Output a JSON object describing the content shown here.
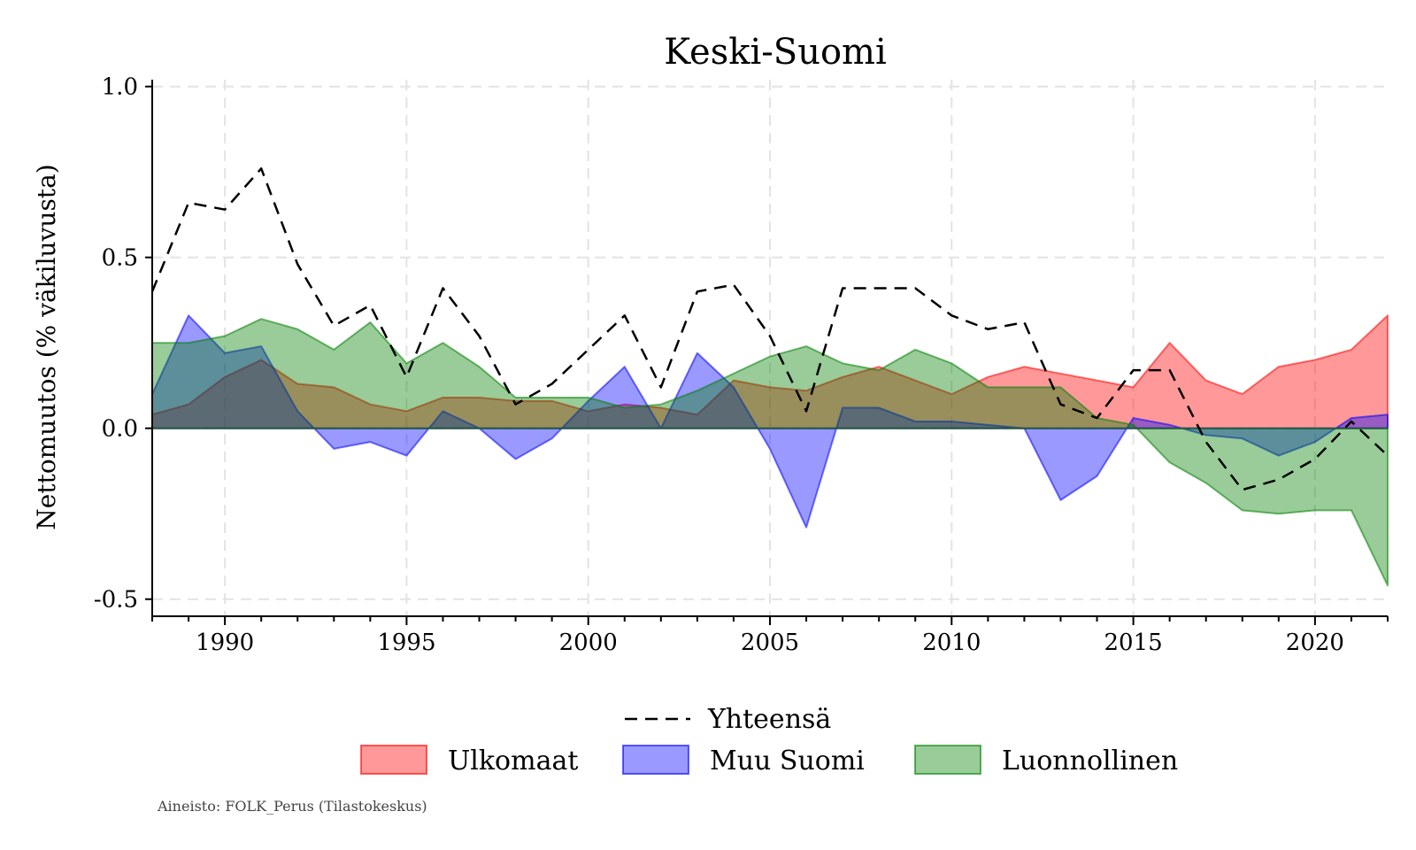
{
  "chart_data": {
    "type": "area",
    "title": "Keski-Suomi",
    "ylabel": "Nettomuutos (% väkiluvusta)",
    "xlabel": "",
    "xlim": [
      1988,
      2022
    ],
    "ylim": [
      -0.55,
      1.02
    ],
    "x_ticks": [
      1990,
      1995,
      2000,
      2005,
      2010,
      2015,
      2020
    ],
    "y_ticks": [
      -0.5,
      0.0,
      0.5,
      1.0
    ],
    "y_tick_labels": [
      "-0.5",
      "0.0",
      "0.5",
      "1.0"
    ],
    "grid": true,
    "legend_position": "bottom",
    "source_note": "Aineisto: FOLK_Perus (Tilastokeskus)",
    "x": [
      1988,
      1989,
      1990,
      1991,
      1992,
      1993,
      1994,
      1995,
      1996,
      1997,
      1998,
      1999,
      2000,
      2001,
      2002,
      2003,
      2004,
      2005,
      2006,
      2007,
      2008,
      2009,
      2010,
      2011,
      2012,
      2013,
      2014,
      2015,
      2016,
      2017,
      2018,
      2019,
      2020,
      2021,
      2022
    ],
    "series": [
      {
        "name": "Ulkomaat",
        "kind": "area",
        "color": "#ff0000",
        "fill_opacity": 0.4,
        "values": [
          0.04,
          0.07,
          0.15,
          0.2,
          0.13,
          0.12,
          0.07,
          0.05,
          0.09,
          0.09,
          0.08,
          0.08,
          0.05,
          0.07,
          0.06,
          0.04,
          0.14,
          0.12,
          0.11,
          0.15,
          0.18,
          0.14,
          0.1,
          0.15,
          0.18,
          0.16,
          0.14,
          0.12,
          0.25,
          0.14,
          0.1,
          0.18,
          0.2,
          0.23,
          0.33
        ]
      },
      {
        "name": "Muu Suomi",
        "kind": "area",
        "color": "#0000ff",
        "fill_opacity": 0.4,
        "values": [
          0.1,
          0.33,
          0.22,
          0.24,
          0.05,
          -0.06,
          -0.04,
          -0.08,
          0.05,
          0.0,
          -0.09,
          -0.03,
          0.08,
          0.18,
          0.0,
          0.22,
          0.12,
          -0.06,
          -0.29,
          0.06,
          0.06,
          0.02,
          0.02,
          0.01,
          0.0,
          -0.21,
          -0.14,
          0.03,
          0.01,
          -0.02,
          -0.03,
          -0.08,
          -0.04,
          0.03,
          0.04
        ]
      },
      {
        "name": "Luonnollinen",
        "kind": "area",
        "color": "#008000",
        "fill_opacity": 0.4,
        "values": [
          0.25,
          0.25,
          0.27,
          0.32,
          0.29,
          0.23,
          0.31,
          0.19,
          0.25,
          0.18,
          0.09,
          0.09,
          0.09,
          0.06,
          0.07,
          0.11,
          0.16,
          0.21,
          0.24,
          0.19,
          0.17,
          0.23,
          0.19,
          0.12,
          0.12,
          0.12,
          0.03,
          0.01,
          -0.1,
          -0.16,
          -0.24,
          -0.25,
          -0.24,
          -0.24,
          -0.46
        ]
      },
      {
        "name": "Yhteensä",
        "kind": "line",
        "color": "#000000",
        "dash": true,
        "values": [
          0.4,
          0.66,
          0.64,
          0.76,
          0.48,
          0.3,
          0.36,
          0.15,
          0.41,
          0.27,
          0.07,
          0.13,
          0.23,
          0.33,
          0.12,
          0.4,
          0.42,
          0.27,
          0.05,
          0.41,
          0.41,
          0.41,
          0.33,
          0.29,
          0.31,
          0.07,
          0.03,
          0.17,
          0.17,
          -0.04,
          -0.18,
          -0.15,
          -0.09,
          0.02,
          -0.08
        ]
      }
    ]
  }
}
